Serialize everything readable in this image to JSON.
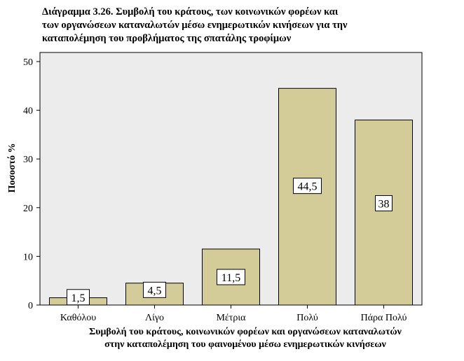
{
  "title": {
    "line1": "Διάγραμμα 3.26. Συμβολή του κράτους, των κοινωνικών φορέων και",
    "line2": "των οργανώσεων καταναλωτών μέσω ενημερωτικών κινήσεων για την",
    "line3": "καταπολέμηση του προβλήματος της σπατάλης τροφίμων"
  },
  "chart_data": {
    "type": "bar",
    "categories": [
      "Καθόλου",
      "Λίγο",
      "Μέτρια",
      "Πολύ",
      "Πάρα Πολύ"
    ],
    "values": [
      1.5,
      4.5,
      11.5,
      44.5,
      38
    ],
    "data_labels": [
      "1,5",
      "4,5",
      "11,5",
      "44,5",
      "38"
    ],
    "yticks": [
      "0",
      "10",
      "20",
      "30",
      "40",
      "50"
    ],
    "ylim": [
      0,
      50
    ],
    "ylabel": "Ποσοστό %",
    "xlabel_line1": "Συμβολή του κράτους, κοινωνικών φορέων και οργανώσεων καταναλωτών",
    "xlabel_line2": "στην καταπολέμηση του φαινομένου μέσω ενημερωτικών κινήσεων",
    "grid": false,
    "colors": {
      "bar": "#d3cc98",
      "plot_bg": "#ececec",
      "border": "#000000"
    }
  }
}
